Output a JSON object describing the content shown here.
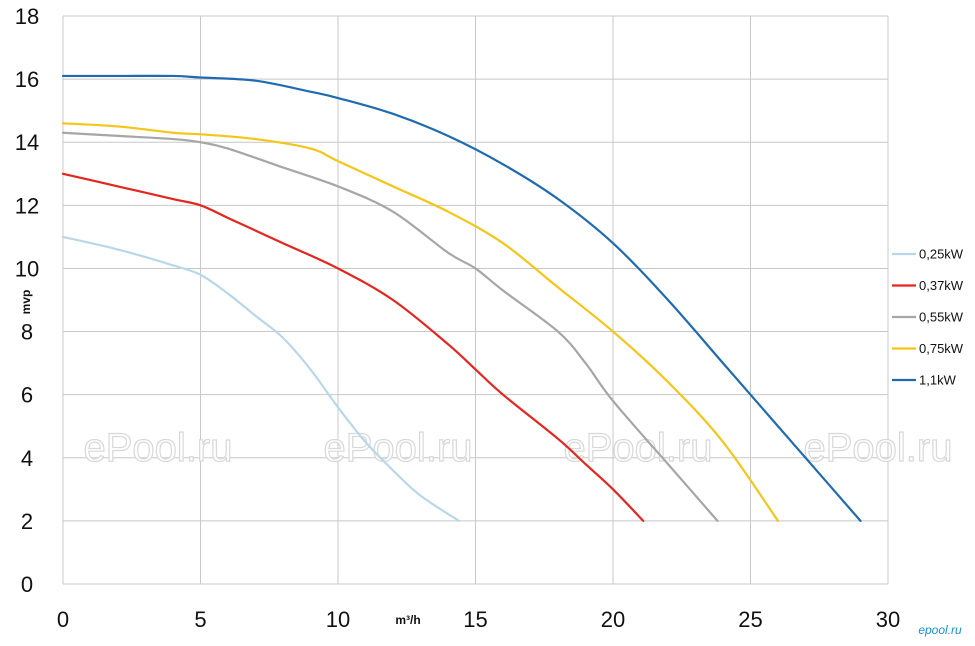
{
  "chart_data": {
    "type": "line",
    "xlabel": "m³/h",
    "ylabel": "mvp",
    "xlim": [
      0,
      30
    ],
    "ylim": [
      0,
      18
    ],
    "xticks": [
      "0",
      "5",
      "10",
      "15",
      "20",
      "25",
      "30"
    ],
    "yticks": [
      "0",
      "2",
      "4",
      "6",
      "8",
      "10",
      "12",
      "14",
      "16",
      "18"
    ],
    "grid": "on",
    "legend_position": "right",
    "series": [
      {
        "name": "0,25kW",
        "color": "#b9d7ea",
        "points": [
          [
            0,
            11.0
          ],
          [
            2,
            10.6
          ],
          [
            4,
            10.1
          ],
          [
            5,
            9.8
          ],
          [
            6,
            9.2
          ],
          [
            7,
            8.5
          ],
          [
            8,
            7.8
          ],
          [
            9,
            6.8
          ],
          [
            10,
            5.6
          ],
          [
            11,
            4.5
          ],
          [
            12,
            3.6
          ],
          [
            13,
            2.8
          ],
          [
            14.4,
            2.0
          ]
        ]
      },
      {
        "name": "0,37kW",
        "color": "#e3261f",
        "points": [
          [
            0,
            13.0
          ],
          [
            2,
            12.6
          ],
          [
            4,
            12.2
          ],
          [
            5,
            12.0
          ],
          [
            6,
            11.6
          ],
          [
            7,
            11.2
          ],
          [
            8,
            10.8
          ],
          [
            10,
            10.0
          ],
          [
            12,
            9.0
          ],
          [
            14,
            7.6
          ],
          [
            15,
            6.8
          ],
          [
            16,
            6.0
          ],
          [
            18,
            4.6
          ],
          [
            19,
            3.8
          ],
          [
            20,
            3.0
          ],
          [
            21.1,
            2.0
          ]
        ]
      },
      {
        "name": "0,55kW",
        "color": "#a6a6a6",
        "points": [
          [
            0,
            14.3
          ],
          [
            2,
            14.2
          ],
          [
            4,
            14.1
          ],
          [
            5,
            14.0
          ],
          [
            6,
            13.8
          ],
          [
            8,
            13.2
          ],
          [
            10,
            12.6
          ],
          [
            12,
            11.8
          ],
          [
            14,
            10.5
          ],
          [
            15,
            10.0
          ],
          [
            16,
            9.3
          ],
          [
            18,
            8.0
          ],
          [
            19,
            7.0
          ],
          [
            20,
            5.8
          ],
          [
            22,
            3.8
          ],
          [
            23.8,
            2.0
          ]
        ]
      },
      {
        "name": "0,75kW",
        "color": "#f5c518",
        "points": [
          [
            0,
            14.6
          ],
          [
            2,
            14.5
          ],
          [
            4,
            14.3
          ],
          [
            5,
            14.25
          ],
          [
            7,
            14.1
          ],
          [
            9,
            13.8
          ],
          [
            10,
            13.4
          ],
          [
            12,
            12.6
          ],
          [
            14,
            11.8
          ],
          [
            16,
            10.8
          ],
          [
            18,
            9.4
          ],
          [
            20,
            8.0
          ],
          [
            22,
            6.4
          ],
          [
            24,
            4.5
          ],
          [
            26,
            2.0
          ]
        ]
      },
      {
        "name": "1,1kW",
        "color": "#1f6bb0",
        "points": [
          [
            0,
            16.1
          ],
          [
            2,
            16.1
          ],
          [
            4,
            16.1
          ],
          [
            5,
            16.05
          ],
          [
            7,
            15.95
          ],
          [
            9,
            15.6
          ],
          [
            10,
            15.4
          ],
          [
            12,
            14.9
          ],
          [
            14,
            14.2
          ],
          [
            16,
            13.3
          ],
          [
            18,
            12.2
          ],
          [
            20,
            10.8
          ],
          [
            22,
            9.0
          ],
          [
            24,
            7.0
          ],
          [
            26,
            5.0
          ],
          [
            28,
            3.0
          ],
          [
            29,
            2.0
          ]
        ]
      }
    ]
  },
  "watermarks": [
    "ePool.ru",
    "ePool.ru",
    "ePool.ru",
    "ePool.ru"
  ],
  "corner_logo": "epool.ru"
}
